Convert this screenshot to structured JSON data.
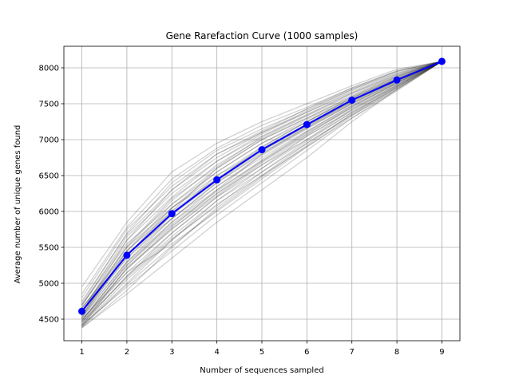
{
  "chart_data": {
    "type": "line",
    "title": "Gene Rarefaction Curve (1000 samples)",
    "xlabel": "Number of sequences sampled",
    "ylabel": "Average number of unique genes found",
    "xlim": [
      0.6,
      9.4
    ],
    "ylim": [
      4200,
      8300
    ],
    "x_ticks": [
      1,
      2,
      3,
      4,
      5,
      6,
      7,
      8,
      9
    ],
    "y_ticks": [
      4500,
      5000,
      5500,
      6000,
      6500,
      7000,
      7500,
      8000
    ],
    "grid": true,
    "colors": {
      "mean": "#0000ff",
      "samples": "#000000",
      "grid": "#b0b0b0"
    },
    "x": [
      1,
      2,
      3,
      4,
      5,
      6,
      7,
      8,
      9
    ],
    "series": [
      {
        "role": "mean",
        "values": [
          4610,
          5390,
          5970,
          6440,
          6860,
          7210,
          7550,
          7830,
          8090
        ]
      },
      {
        "role": "sample",
        "values": [
          4950,
          5850,
          6550,
          6950,
          7250,
          7500,
          7750,
          7980,
          8090
        ]
      },
      {
        "role": "sample",
        "values": [
          4850,
          5780,
          6450,
          6880,
          7200,
          7450,
          7720,
          7950,
          8090
        ]
      },
      {
        "role": "sample",
        "values": [
          4750,
          5680,
          6300,
          6750,
          7100,
          7380,
          7680,
          7920,
          8090
        ]
      },
      {
        "role": "sample",
        "values": [
          4700,
          5550,
          6100,
          6600,
          7000,
          7300,
          7600,
          7880,
          8090
        ]
      },
      {
        "role": "sample",
        "values": [
          4650,
          5450,
          6050,
          6550,
          6950,
          7280,
          7580,
          7860,
          8090
        ]
      },
      {
        "role": "sample",
        "values": [
          4600,
          5400,
          6000,
          6450,
          6880,
          7220,
          7560,
          7840,
          8090
        ]
      },
      {
        "role": "sample",
        "values": [
          4560,
          5350,
          5950,
          6420,
          6840,
          7190,
          7540,
          7820,
          8090
        ]
      },
      {
        "role": "sample",
        "values": [
          4520,
          5300,
          5900,
          6400,
          6800,
          7160,
          7500,
          7800,
          8090
        ]
      },
      {
        "role": "sample",
        "values": [
          4480,
          5250,
          5850,
          6350,
          6750,
          7120,
          7470,
          7780,
          8090
        ]
      },
      {
        "role": "sample",
        "values": [
          4450,
          5200,
          5780,
          6300,
          6700,
          7080,
          7440,
          7760,
          8090
        ]
      },
      {
        "role": "sample",
        "values": [
          4420,
          5100,
          5700,
          6200,
          6650,
          7050,
          7420,
          7740,
          8090
        ]
      },
      {
        "role": "sample",
        "values": [
          4400,
          5000,
          5600,
          6150,
          6600,
          7000,
          7380,
          7720,
          8090
        ]
      },
      {
        "role": "sample",
        "values": [
          4380,
          4900,
          5500,
          6050,
          6500,
          6950,
          7340,
          7700,
          8090
        ]
      },
      {
        "role": "sample",
        "values": [
          4700,
          5600,
          6200,
          6700,
          7050,
          7350,
          7650,
          7900,
          8090
        ]
      },
      {
        "role": "sample",
        "values": [
          4650,
          5500,
          6150,
          6650,
          7020,
          7330,
          7620,
          7880,
          8090
        ]
      },
      {
        "role": "sample",
        "values": [
          4550,
          5450,
          6100,
          6550,
          6950,
          7250,
          7580,
          7850,
          8090
        ]
      },
      {
        "role": "sample",
        "values": [
          4600,
          5350,
          5900,
          6350,
          6780,
          7150,
          7500,
          7820,
          8090
        ]
      },
      {
        "role": "sample",
        "values": [
          4500,
          5250,
          5800,
          6250,
          6700,
          7100,
          7450,
          7790,
          8090
        ]
      },
      {
        "role": "sample",
        "values": [
          4450,
          5150,
          5700,
          6200,
          6600,
          7050,
          7400,
          7760,
          8090
        ]
      },
      {
        "role": "sample",
        "values": [
          4400,
          5050,
          5600,
          6100,
          6500,
          6900,
          7300,
          7680,
          8090
        ]
      },
      {
        "role": "sample",
        "values": [
          4420,
          4950,
          5450,
          5950,
          6400,
          6850,
          7300,
          7700,
          8090
        ]
      },
      {
        "role": "sample",
        "values": [
          4380,
          4850,
          5350,
          5850,
          6300,
          6750,
          7250,
          7700,
          8090
        ]
      },
      {
        "role": "sample",
        "values": [
          4720,
          5700,
          6400,
          6850,
          7150,
          7420,
          7700,
          7950,
          8090
        ]
      },
      {
        "role": "sample",
        "values": [
          4680,
          5650,
          6250,
          6700,
          7080,
          7380,
          7660,
          7910,
          8090
        ]
      },
      {
        "role": "sample",
        "values": [
          4580,
          5500,
          6050,
          6500,
          6900,
          7250,
          7560,
          7840,
          8090
        ]
      },
      {
        "role": "sample",
        "values": [
          4620,
          5400,
          5950,
          6500,
          6850,
          7200,
          7520,
          7830,
          8090
        ]
      },
      {
        "role": "sample",
        "values": [
          4540,
          5300,
          5850,
          6300,
          6800,
          7180,
          7530,
          7830,
          8090
        ]
      },
      {
        "role": "sample",
        "values": [
          4480,
          5200,
          5750,
          6250,
          6650,
          7000,
          7420,
          7770,
          8090
        ]
      },
      {
        "role": "sample",
        "values": [
          4430,
          5100,
          5650,
          6150,
          6550,
          6950,
          7350,
          7730,
          8090
        ]
      },
      {
        "role": "sample",
        "values": [
          4500,
          5150,
          5550,
          6000,
          6450,
          6900,
          7330,
          7720,
          8090
        ]
      },
      {
        "role": "sample",
        "values": [
          4600,
          5600,
          6300,
          6800,
          7100,
          7400,
          7700,
          7930,
          8090
        ]
      },
      {
        "role": "sample",
        "values": [
          4550,
          5450,
          6000,
          6600,
          7000,
          7300,
          7600,
          7870,
          8090
        ]
      },
      {
        "role": "sample",
        "values": [
          4660,
          5380,
          6050,
          6450,
          6900,
          7250,
          7580,
          7850,
          8090
        ]
      },
      {
        "role": "sample",
        "values": [
          4520,
          5420,
          5900,
          6400,
          6820,
          7170,
          7510,
          7810,
          8090
        ]
      },
      {
        "role": "sample",
        "values": [
          4470,
          5280,
          5820,
          6280,
          6720,
          7110,
          7480,
          7800,
          8090
        ]
      },
      {
        "role": "sample",
        "values": [
          4410,
          5220,
          5760,
          6220,
          6680,
          7070,
          7460,
          7790,
          8090
        ]
      },
      {
        "role": "sample",
        "values": [
          4460,
          5080,
          5620,
          6080,
          6550,
          6980,
          7380,
          7750,
          8090
        ]
      },
      {
        "role": "sample",
        "values": [
          4390,
          4980,
          5520,
          6020,
          6480,
          6920,
          7360,
          7740,
          8090
        ]
      },
      {
        "role": "sample",
        "values": [
          4800,
          5750,
          6350,
          6800,
          7120,
          7430,
          7720,
          7960,
          8090
        ]
      },
      {
        "role": "sample",
        "values": [
          4610,
          5520,
          6180,
          6620,
          7040,
          7340,
          7640,
          7890,
          8090
        ]
      }
    ]
  }
}
